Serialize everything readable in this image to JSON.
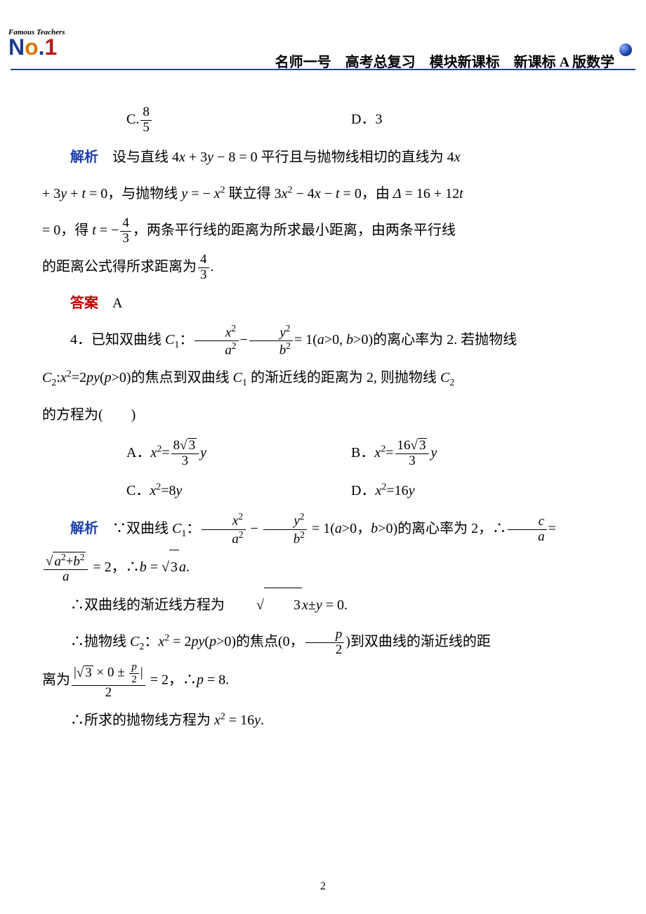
{
  "header": {
    "logo_top": "Famous Teachers",
    "logo_main": "No.1",
    "title": "名师一号　高考总复习　模块新课标　新课标 A 版数学"
  },
  "q3_options": {
    "C": "8/5",
    "D": "3"
  },
  "q3_solution": {
    "label": "解析",
    "text1": "设与直线 4x + 3y − 8 = 0 平行且与抛物线相切的直线为 4x",
    "text2": "+ 3y + t = 0，与抛物线 y = − x² 联立得 3x² − 4x − t = 0，由 Δ = 16 + 12t",
    "text3_a": "= 0，得 t = −",
    "text3_frac_num": "4",
    "text3_frac_den": "3",
    "text3_b": "，两条平行线的距离为所求最小距离，由两条平行线",
    "text4_a": "的距离公式得所求距离为",
    "text4_frac_num": "4",
    "text4_frac_den": "3",
    "text4_b": "."
  },
  "q3_answer": {
    "label": "答案",
    "value": "A"
  },
  "q4": {
    "num": "4．",
    "stem1_a": "已知双曲线 C₁：",
    "stem1_eq_xn": "x²",
    "stem1_eq_xd": "a²",
    "stem1_eq_yn": "y²",
    "stem1_eq_yd": "b²",
    "stem1_mid": "−",
    "stem1_b": "= 1(a>0, b>0)的离心率为 2. 若抛物线",
    "stem2": "C₂:x²=2py(p>0)的焦点到双曲线 C₁ 的渐近线的距离为 2, 则抛物线 C₂",
    "stem3": "的方程为(　　)",
    "optA_pre": "A．x²=",
    "optA_num": "8√3",
    "optA_den": "3",
    "optA_post": "y",
    "optB_pre": "B．x²=",
    "optB_num": "16√3",
    "optB_den": "3",
    "optB_post": "y",
    "optC": "C．x²=8y",
    "optD": "D．x²=16y"
  },
  "q4_solution": {
    "label": "解析",
    "s1_a": "∵双曲线 C₁：",
    "s1_mid": "−",
    "s1_b": " = 1(a>0，b>0)的离心率为 2，∴",
    "s1_cn": "c",
    "s1_cd": "a",
    "s1_eq": "=",
    "s2_num": "√(a²+b²)",
    "s2_den": "a",
    "s2_rest": " = 2，∴b = √3a.",
    "s3": "∴双曲线的渐近线方程为 √3x±y = 0.",
    "s4_a": "∴抛物线 C₂：x² = 2py(p>0)的焦点(0，",
    "s4_pn": "p",
    "s4_pd": "2",
    "s4_b": ")到双曲线的渐近线的距",
    "s5_a": "离为",
    "s5_num": "|√3 × 0 ± p/2|",
    "s5_den": "2",
    "s5_b": " = 2，∴p = 8.",
    "s6": "∴所求的抛物线方程为 x² = 16y."
  },
  "footer": {
    "page": "2"
  }
}
